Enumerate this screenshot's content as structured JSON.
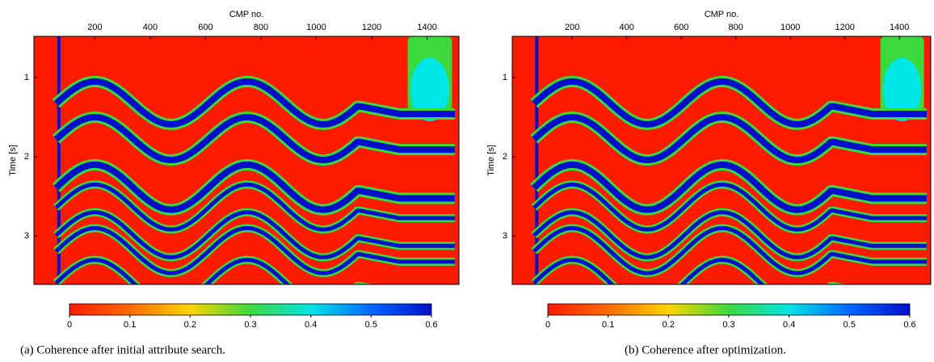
{
  "chart_data": [
    {
      "type": "heatmap",
      "title": "(a)  Coherence after initial attribute search.",
      "xlabel": "CMP no.",
      "ylabel": "Time [s]",
      "xlim": [
        -20,
        1515
      ],
      "xticks": [
        200,
        400,
        600,
        800,
        1000,
        1200,
        1400
      ],
      "ylim": [
        0.48,
        3.61
      ],
      "yticks": [
        1,
        2,
        3
      ],
      "y_inverted": true,
      "colorbar": {
        "lim": [
          0,
          0.6
        ],
        "ticks": [
          0,
          0.1,
          0.2,
          0.3,
          0.4,
          0.5,
          0.6
        ],
        "colors": [
          "#ff1a00",
          "#ff6a00",
          "#ffd400",
          "#3cd93c",
          "#00e5e5",
          "#0066ff",
          "#0010c8"
        ]
      }
    },
    {
      "type": "heatmap",
      "title": "(b)  Coherence after optimization.",
      "xlabel": "CMP no.",
      "ylabel": "Time [s]",
      "xlim": [
        -20,
        1515
      ],
      "xticks": [
        200,
        400,
        600,
        800,
        1000,
        1200,
        1400
      ],
      "ylim": [
        0.48,
        3.61
      ],
      "yticks": [
        1,
        2,
        3
      ],
      "y_inverted": true,
      "colorbar": {
        "lim": [
          0,
          0.6
        ],
        "ticks": [
          0,
          0.1,
          0.2,
          0.3,
          0.4,
          0.5,
          0.6
        ],
        "colors": [
          "#ff1a00",
          "#ff6a00",
          "#ffd400",
          "#3cd93c",
          "#00e5e5",
          "#0066ff",
          "#0010c8"
        ]
      }
    }
  ]
}
